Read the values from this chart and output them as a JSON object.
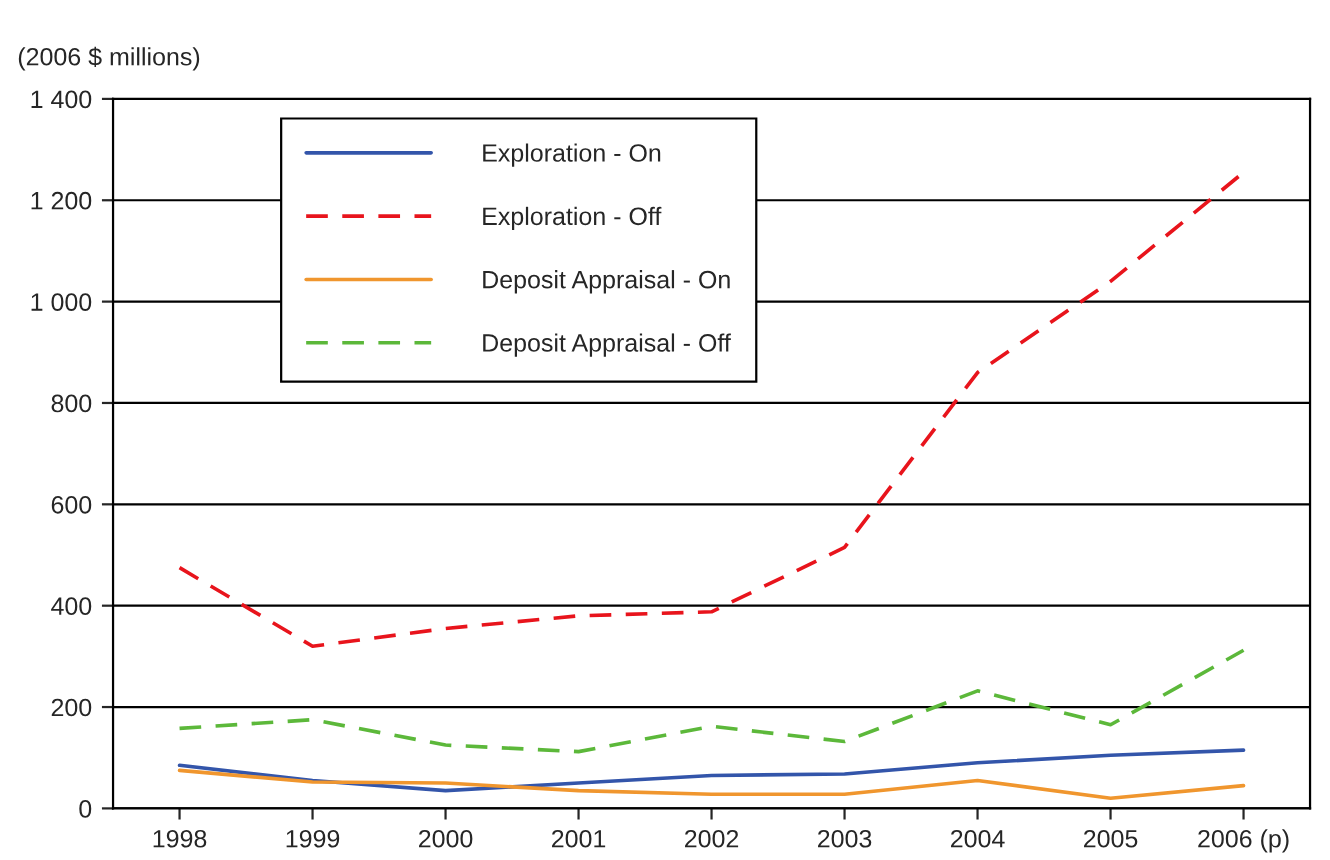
{
  "chart_data": {
    "type": "line",
    "ylabel": "(2006 $ millions)",
    "categories": [
      "1998",
      "1999",
      "2000",
      "2001",
      "2002",
      "2003",
      "2004",
      "2005",
      "2006 (p)"
    ],
    "series": [
      {
        "name": "Exploration - On",
        "color": "#3355aa",
        "line_style": "solid",
        "values": [
          85,
          55,
          35,
          50,
          65,
          68,
          90,
          105,
          115
        ]
      },
      {
        "name": "Exploration - Off",
        "color": "#e8141c",
        "line_style": "dashed",
        "values": [
          475,
          320,
          355,
          380,
          388,
          515,
          860,
          1040,
          1255
        ]
      },
      {
        "name": "Deposit Appraisal - On",
        "color": "#f0962e",
        "line_style": "solid",
        "values": [
          75,
          52,
          50,
          35,
          28,
          28,
          55,
          20,
          45
        ]
      },
      {
        "name": "Deposit Appraisal - Off",
        "color": "#5cb83a",
        "line_style": "dashed",
        "values": [
          158,
          175,
          125,
          112,
          162,
          132,
          232,
          165,
          312
        ]
      }
    ],
    "ylim": [
      0,
      1400
    ],
    "yticks": [
      0,
      200,
      400,
      600,
      800,
      {
        "value": 1000,
        "label": "1 000"
      },
      {
        "value": 1200,
        "label": "1 200"
      },
      {
        "value": 1400,
        "label": "1 400"
      }
    ],
    "grid": "y",
    "legend": "top left",
    "marker": "none"
  }
}
